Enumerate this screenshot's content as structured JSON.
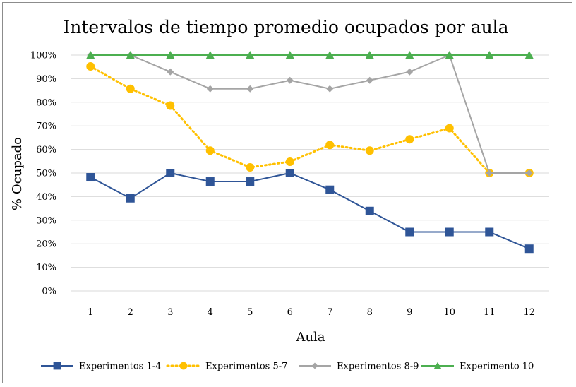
{
  "chart_data": {
    "type": "line",
    "title": "Intervalos de tiempo promedio ocupados por aula",
    "xlabel": "Aula",
    "ylabel": "% Ocupado",
    "categories": [
      "1",
      "2",
      "3",
      "4",
      "5",
      "6",
      "7",
      "8",
      "9",
      "10",
      "11",
      "12"
    ],
    "ylim": [
      0,
      100
    ],
    "yticks": [
      "0%",
      "10%",
      "20%",
      "30%",
      "40%",
      "50%",
      "60%",
      "70%",
      "80%",
      "90%",
      "100%"
    ],
    "grid": true,
    "legend_position": "bottom",
    "series": [
      {
        "name": "Experimentos 1-4",
        "color": "#2f5597",
        "marker": "square",
        "dash": "solid",
        "values": [
          48.2,
          39.3,
          50.0,
          46.4,
          46.4,
          50.0,
          42.9,
          33.9,
          25.0,
          25.0,
          25.0,
          17.9
        ]
      },
      {
        "name": "Experimentos 5-7",
        "color": "#ffc000",
        "marker": "circle",
        "dash": "dotted",
        "values": [
          95.2,
          85.7,
          78.6,
          59.5,
          52.4,
          54.8,
          61.9,
          59.5,
          64.3,
          69.0,
          50.0,
          50.0
        ]
      },
      {
        "name": "Experimentos 8-9",
        "color": "#a5a5a5",
        "marker": "diamond",
        "dash": "solid",
        "values": [
          100,
          100,
          92.9,
          85.7,
          85.7,
          89.3,
          85.7,
          89.3,
          92.9,
          100,
          50.0,
          50.0
        ]
      },
      {
        "name": "Experimento 10",
        "color": "#4caf50",
        "marker": "triangle",
        "dash": "solid",
        "values": [
          100,
          100,
          100,
          100,
          100,
          100,
          100,
          100,
          100,
          100,
          100,
          100
        ]
      }
    ]
  }
}
